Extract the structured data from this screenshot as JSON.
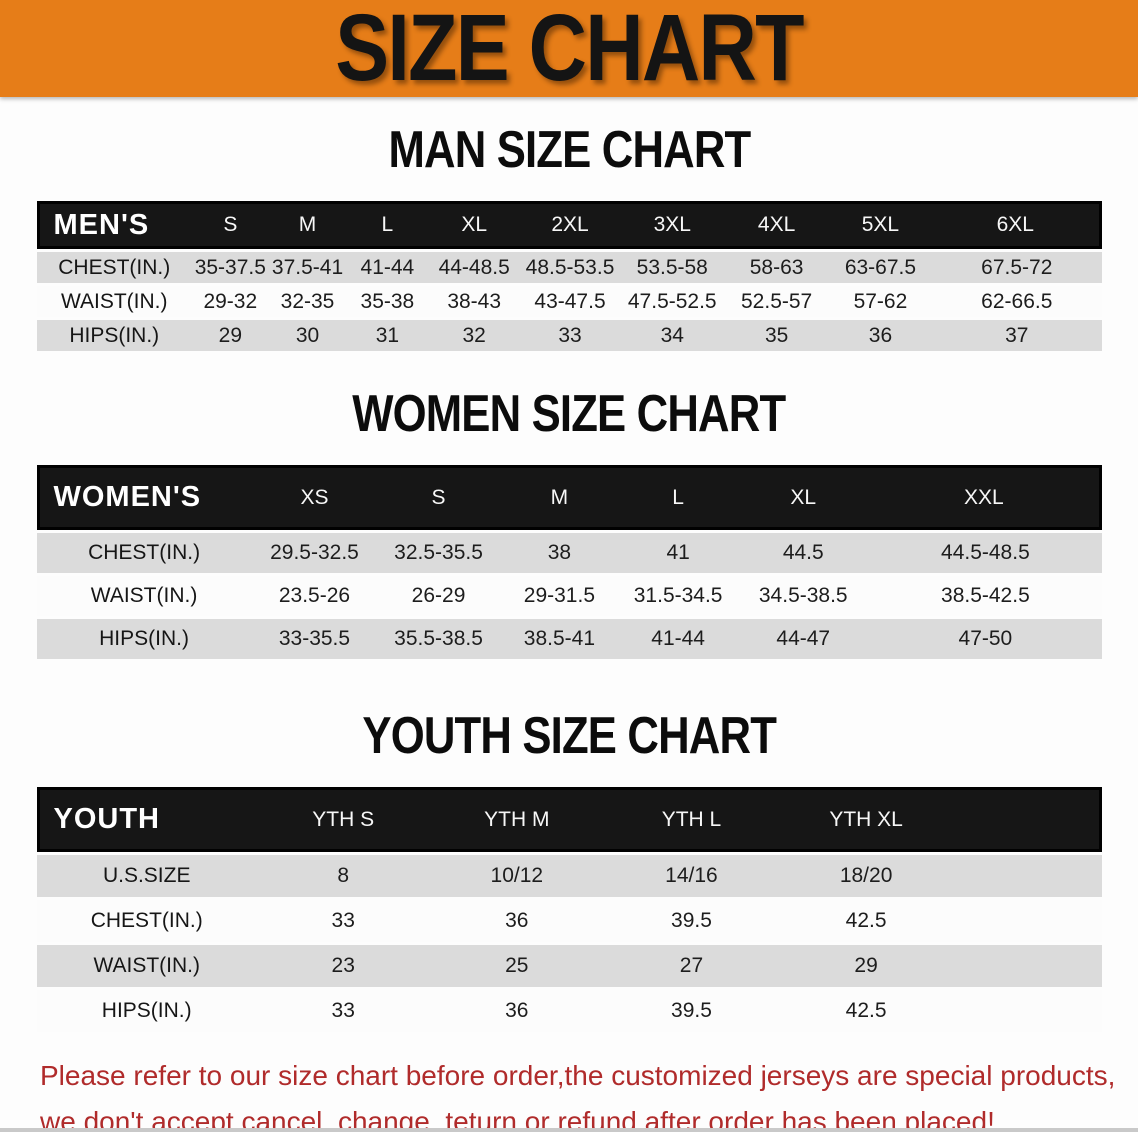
{
  "banner": {
    "title": "SIZE CHART"
  },
  "sections": [
    {
      "heading": "MAN SIZE CHART",
      "label": "MEN'S",
      "columns": [
        "S",
        "M",
        "L",
        "XL",
        "2XL",
        "3XL",
        "4XL",
        "5XL",
        "6XL"
      ],
      "rows": [
        {
          "label": "CHEST(IN.)",
          "values": [
            "35-37.5",
            "37.5-41",
            "41-44",
            "44-48.5",
            "48.5-53.5",
            "53.5-58",
            "58-63",
            "63-67.5",
            "67.5-72"
          ]
        },
        {
          "label": "WAIST(IN.)",
          "values": [
            "29-32",
            "32-35",
            "35-38",
            "38-43",
            "43-47.5",
            "47.5-52.5",
            "52.5-57",
            "57-62",
            "62-66.5"
          ]
        },
        {
          "label": "HIPS(IN.)",
          "values": [
            "29",
            "30",
            "31",
            "32",
            "33",
            "34",
            "35",
            "36",
            "37"
          ]
        }
      ]
    },
    {
      "heading": "WOMEN SIZE CHART",
      "label": "WOMEN'S",
      "columns": [
        "XS",
        "S",
        "M",
        "L",
        "XL",
        "XXL"
      ],
      "rows": [
        {
          "label": "CHEST(IN.)",
          "values": [
            "29.5-32.5",
            "32.5-35.5",
            "38",
            "41",
            "44.5",
            "44.5-48.5"
          ]
        },
        {
          "label": "WAIST(IN.)",
          "values": [
            "23.5-26",
            "26-29",
            "29-31.5",
            "31.5-34.5",
            "34.5-38.5",
            "38.5-42.5"
          ]
        },
        {
          "label": "HIPS(IN.)",
          "values": [
            "33-35.5",
            "35.5-38.5",
            "38.5-41",
            "41-44",
            "44-47",
            "47-50"
          ]
        }
      ]
    },
    {
      "heading": "YOUTH SIZE CHART",
      "label": "YOUTH",
      "columns": [
        "YTH S",
        "YTH M",
        "YTH L",
        "YTH XL"
      ],
      "rows": [
        {
          "label": "U.S.SIZE",
          "values": [
            "8",
            "10/12",
            "14/16",
            "18/20"
          ]
        },
        {
          "label": "CHEST(IN.)",
          "values": [
            "33",
            "36",
            "39.5",
            "42.5"
          ]
        },
        {
          "label": "WAIST(IN.)",
          "values": [
            "23",
            "25",
            "27",
            "29"
          ]
        },
        {
          "label": "HIPS(IN.)",
          "values": [
            "33",
            "36",
            "39.5",
            "42.5"
          ]
        }
      ]
    }
  ],
  "disclaimer": {
    "line1": "Please refer to our size chart before order,the customized jerseys are special products,",
    "line2": "we don't accept cancel, change, teturn or refund after order has been placed!"
  },
  "colors": {
    "banner_bg": "#E67D18",
    "header_bg": "#161616",
    "row_gray": "#DBDBDB",
    "disclaimer_red": "#B02B2B"
  }
}
